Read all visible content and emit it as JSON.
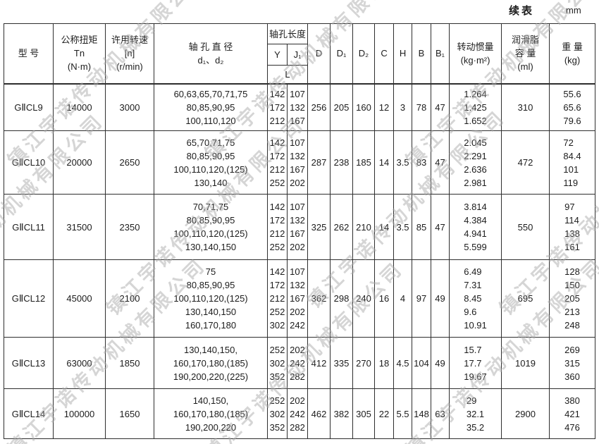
{
  "page": {
    "continued_label": "续表",
    "unit_label": "mm"
  },
  "watermark": {
    "text": "镇江宇诺传动机械有限公司"
  },
  "table": {
    "headers": {
      "model": "型  号",
      "torque": "公称扭矩\nTn\n(N·m)",
      "speed": "许用转速\n[n]\n(r/min)",
      "diameter": "轴 孔 直 径\nd₁、d₂",
      "length_group": "轴孔长度",
      "y": "Y",
      "j1": "J₁",
      "l": "L",
      "d": "D",
      "d1": "D₁",
      "d2": "D₂",
      "c": "C",
      "h": "H",
      "b": "B",
      "b1": "B₁",
      "inertia": "转动惯量\n(kg·m²)",
      "grease": "润滑脂\n容  量\n(ml)",
      "weight": "重  量\n(kg)"
    },
    "rows": [
      {
        "model": "GⅡCL9",
        "torque": "14000",
        "speed": "3000",
        "diameters": [
          "60,63,65,70,71,75",
          "80,85,90,95",
          "100,110,120"
        ],
        "y": [
          "142",
          "172",
          "212"
        ],
        "j1": [
          "107",
          "132",
          "167"
        ],
        "d": "256",
        "d1": "205",
        "d2": "160",
        "c": "12",
        "h": "3",
        "b": "78",
        "b1": "47",
        "inertia": [
          "1.264",
          "1.425",
          "1.652"
        ],
        "grease": "310",
        "weight": [
          "55.6",
          "65.6",
          "79.6"
        ]
      },
      {
        "model": "GⅡCL10",
        "torque": "20000",
        "speed": "2650",
        "diameters": [
          "65,70,71,75",
          "80,85,90,95",
          "100,110,120,(125)",
          "130,140"
        ],
        "y": [
          "142",
          "172",
          "212",
          "252"
        ],
        "j1": [
          "107",
          "132",
          "167",
          "202"
        ],
        "d": "287",
        "d1": "238",
        "d2": "185",
        "c": "14",
        "h": "3.5",
        "b": "83",
        "b1": "47",
        "inertia": [
          "2.045",
          "2.291",
          "2.636",
          "2.981"
        ],
        "grease": "472",
        "weight": [
          "72",
          "84.4",
          "101",
          "119"
        ]
      },
      {
        "model": "GⅡCL11",
        "torque": "31500",
        "speed": "2350",
        "diameters": [
          "70,71,75",
          "80,85,90,95",
          "100,110,120,(125)",
          "130,140,150"
        ],
        "y": [
          "142",
          "172",
          "212",
          "252"
        ],
        "j1": [
          "107",
          "132",
          "167",
          "202"
        ],
        "d": "325",
        "d1": "262",
        "d2": "210",
        "c": "14",
        "h": "3.5",
        "b": "85",
        "b1": "47",
        "inertia": [
          "3.814",
          "4.384",
          "4.941",
          "5.599"
        ],
        "grease": "550",
        "weight": [
          "97",
          "114",
          "138",
          "161"
        ]
      },
      {
        "model": "GⅡCL12",
        "torque": "45000",
        "speed": "2100",
        "diameters": [
          "75",
          "80,85,90,95",
          "100,110,120,(125)",
          "130,140,150",
          "160,170,180"
        ],
        "y": [
          "142",
          "172",
          "212",
          "252",
          "302"
        ],
        "j1": [
          "107",
          "132",
          "167",
          "202",
          "242"
        ],
        "d": "362",
        "d1": "298",
        "d2": "240",
        "c": "16",
        "h": "4",
        "b": "97",
        "b1": "49",
        "inertia": [
          "6.49",
          "7.31",
          "8.45",
          "9.6",
          "10.91"
        ],
        "grease": "695",
        "weight": [
          "128",
          "150",
          "205",
          "213",
          "248"
        ]
      },
      {
        "model": "GⅡCL13",
        "torque": "63000",
        "speed": "1850",
        "diameters": [
          "130,140,150,",
          "160,170,180,(185)",
          "190,200,220,(225)"
        ],
        "y": [
          "252",
          "302",
          "352"
        ],
        "j1": [
          "202",
          "242",
          "282"
        ],
        "d": "412",
        "d1": "335",
        "d2": "270",
        "c": "18",
        "h": "4.5",
        "b": "104",
        "b1": "49",
        "inertia": [
          "15.7",
          "17.7",
          "19.67"
        ],
        "grease": "1019",
        "weight": [
          "269",
          "315",
          "360"
        ]
      },
      {
        "model": "GⅡCL14",
        "torque": "100000",
        "speed": "1650",
        "diameters": [
          "140,150,",
          "160,170,180,(185)",
          "190,200,220"
        ],
        "y": [
          "252",
          "302",
          "352"
        ],
        "j1": [
          "202",
          "242",
          "282"
        ],
        "d": "462",
        "d1": "382",
        "d2": "305",
        "c": "22",
        "h": "5.5",
        "b": "148",
        "b1": "63",
        "inertia": [
          "29",
          "32.1",
          "35.2"
        ],
        "grease": "2900",
        "weight": [
          "380",
          "421",
          "476"
        ]
      }
    ]
  }
}
